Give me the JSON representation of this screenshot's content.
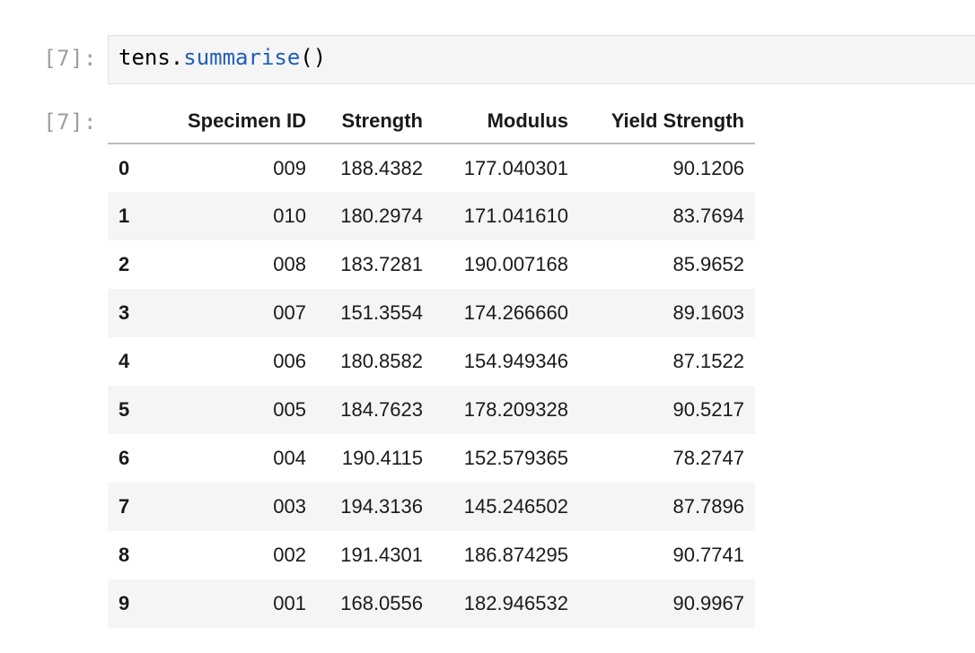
{
  "input": {
    "prompt": "[7]:",
    "code_obj": "tens",
    "code_dot": ".",
    "code_method": "summarise",
    "code_parens": "()"
  },
  "output": {
    "prompt": "[7]:",
    "columns": [
      "Specimen ID",
      "Strength",
      "Modulus",
      "Yield Strength"
    ],
    "rows": [
      {
        "index": "0",
        "specimen_id": "009",
        "strength": "188.4382",
        "modulus": "177.040301",
        "yield_strength": "90.1206"
      },
      {
        "index": "1",
        "specimen_id": "010",
        "strength": "180.2974",
        "modulus": "171.041610",
        "yield_strength": "83.7694"
      },
      {
        "index": "2",
        "specimen_id": "008",
        "strength": "183.7281",
        "modulus": "190.007168",
        "yield_strength": "85.9652"
      },
      {
        "index": "3",
        "specimen_id": "007",
        "strength": "151.3554",
        "modulus": "174.266660",
        "yield_strength": "89.1603"
      },
      {
        "index": "4",
        "specimen_id": "006",
        "strength": "180.8582",
        "modulus": "154.949346",
        "yield_strength": "87.1522"
      },
      {
        "index": "5",
        "specimen_id": "005",
        "strength": "184.7623",
        "modulus": "178.209328",
        "yield_strength": "90.5217"
      },
      {
        "index": "6",
        "specimen_id": "004",
        "strength": "190.4115",
        "modulus": "152.579365",
        "yield_strength": "78.2747"
      },
      {
        "index": "7",
        "specimen_id": "003",
        "strength": "194.3136",
        "modulus": "145.246502",
        "yield_strength": "87.7896"
      },
      {
        "index": "8",
        "specimen_id": "002",
        "strength": "191.4301",
        "modulus": "186.874295",
        "yield_strength": "90.7741"
      },
      {
        "index": "9",
        "specimen_id": "001",
        "strength": "168.0556",
        "modulus": "182.946532",
        "yield_strength": "90.9967"
      }
    ]
  },
  "colors": {
    "prompt": "#9e9e9e",
    "method": "#1f5fb3",
    "editor_bg": "#f5f5f5",
    "stripe_bg": "#f5f5f5"
  }
}
